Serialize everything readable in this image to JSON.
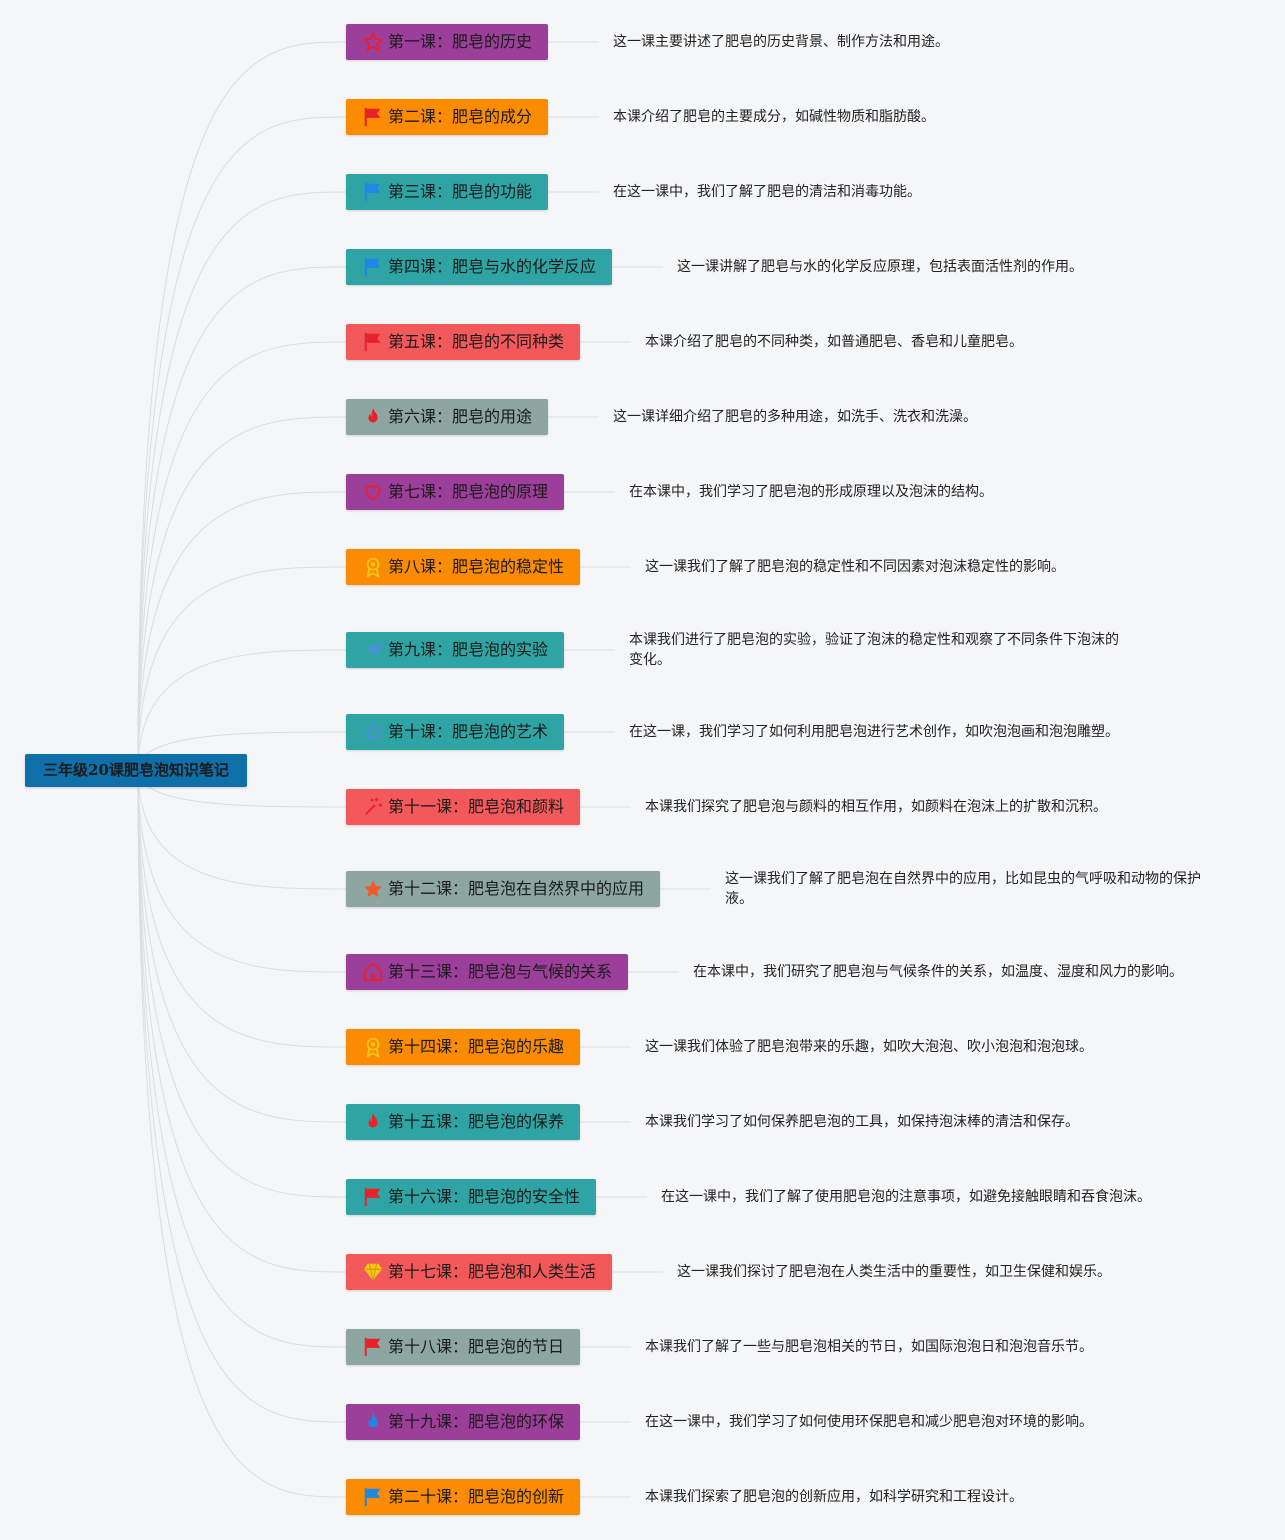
{
  "mindmap": {
    "root": {
      "label": "三年级20课肥皂泡知识笔记",
      "color": "#0f6fa8"
    },
    "lessons": [
      {
        "title": "第一课：肥皂的历史",
        "note": "这一课主要讲述了肥皂的历史背景、制作方法和用途。",
        "color": "#9c3f9a",
        "icon": "star-outline-icon",
        "icon_color": "#e8212b"
      },
      {
        "title": "第二课：肥皂的成分",
        "note": "本课介绍了肥皂的主要成分，如碱性物质和脂肪酸。",
        "color": "#fb8c00",
        "icon": "red-flag-icon",
        "icon_color": "#e8212b"
      },
      {
        "title": "第三课：肥皂的功能",
        "note": "在这一课中，我们了解了肥皂的清洁和消毒功能。",
        "color": "#2ea5a4",
        "icon": "blue-flag-icon",
        "icon_color": "#1e88e5"
      },
      {
        "title": "第四课：肥皂与水的化学反应",
        "note": "这一课讲解了肥皂与水的化学反应原理，包括表面活性剂的作用。",
        "color": "#2ea5a4",
        "icon": "blue-flag-icon",
        "icon_color": "#1e88e5"
      },
      {
        "title": "第五课：肥皂的不同种类",
        "note": "本课介绍了肥皂的不同种类，如普通肥皂、香皂和儿童肥皂。",
        "color": "#f3585a",
        "icon": "red-flag-icon",
        "icon_color": "#e8212b"
      },
      {
        "title": "第六课：肥皂的用途",
        "note": "这一课详细介绍了肥皂的多种用途，如洗手、洗衣和洗澡。",
        "color": "#8da6a0",
        "icon": "fire-icon",
        "icon_color": "#e8212b"
      },
      {
        "title": "第七课：肥皂泡的原理",
        "note": "在本课中，我们学习了肥皂泡的形成原理以及泡沫的结构。",
        "color": "#9c3f9a",
        "icon": "heart-outline-icon",
        "icon_color": "#e8212b"
      },
      {
        "title": "第八课：肥皂泡的稳定性",
        "note": "这一课我们了解了肥皂泡的稳定性和不同因素对泡沫稳定性的影响。",
        "color": "#fb8c00",
        "icon": "medal-icon",
        "icon_color": "#f5c518"
      },
      {
        "title": "第九课：肥皂泡的实验",
        "note": "本课我们进行了肥皂泡的实验，验证了泡沫的稳定性和观察了不同条件下泡沫的变化。",
        "color": "#2ea5a4",
        "icon": "paper-plane-icon",
        "icon_color": "#4a90d9"
      },
      {
        "title": "第十课：肥皂泡的艺术",
        "note": "在这一课，我们学习了如何利用肥皂泡进行艺术创作，如吹泡泡画和泡泡雕塑。",
        "color": "#2ea5a4",
        "icon": "star-outline-icon",
        "icon_color": "#4a90d9"
      },
      {
        "title": "第十一课：肥皂泡和颜料",
        "note": "本课我们探究了肥皂泡与颜料的相互作用，如颜料在泡沫上的扩散和沉积。",
        "color": "#f3585a",
        "icon": "sparkle-icon",
        "icon_color": "#e8212b"
      },
      {
        "title": "第十二课：肥皂泡在自然界中的应用",
        "note": "这一课我们了解了肥皂泡在自然界中的应用，比如昆虫的气呼吸和动物的保护液。",
        "color": "#8da6a0",
        "icon": "star-icon",
        "icon_color": "#ef5a28"
      },
      {
        "title": "第十三课：肥皂泡与气候的关系",
        "note": "在本课中，我们研究了肥皂泡与气候条件的关系，如温度、湿度和风力的影响。",
        "color": "#9c3f9a",
        "icon": "house-icon",
        "icon_color": "#e8212b"
      },
      {
        "title": "第十四课：肥皂泡的乐趣",
        "note": "这一课我们体验了肥皂泡带来的乐趣，如吹大泡泡、吹小泡泡和泡泡球。",
        "color": "#fb8c00",
        "icon": "medal-icon",
        "icon_color": "#f5c518"
      },
      {
        "title": "第十五课：肥皂泡的保养",
        "note": "本课我们学习了如何保养肥皂泡的工具，如保持泡沫棒的清洁和保存。",
        "color": "#2ea5a4",
        "icon": "fire-icon",
        "icon_color": "#e8212b"
      },
      {
        "title": "第十六课：肥皂泡的安全性",
        "note": "在这一课中，我们了解了使用肥皂泡的注意事项，如避免接触眼睛和吞食泡沫。",
        "color": "#2ea5a4",
        "icon": "red-flag-icon",
        "icon_color": "#e8212b"
      },
      {
        "title": "第十七课：肥皂泡和人类生活",
        "note": "这一课我们探讨了肥皂泡在人类生活中的重要性，如卫生保健和娱乐。",
        "color": "#f3585a",
        "icon": "diamond-icon",
        "icon_color": "#f5c518"
      },
      {
        "title": "第十八课：肥皂泡的节日",
        "note": "本课我们了解了一些与肥皂泡相关的节日，如国际泡泡日和泡泡音乐节。",
        "color": "#8da6a0",
        "icon": "red-flag-icon",
        "icon_color": "#e8212b"
      },
      {
        "title": "第十九课：肥皂泡的环保",
        "note": "在这一课中，我们学习了如何使用环保肥皂和减少肥皂泡对环境的影响。",
        "color": "#9c3f9a",
        "icon": "fire-icon",
        "icon_color": "#1e88e5"
      },
      {
        "title": "第二十课：肥皂泡的创新",
        "note": "本课我们探索了肥皂泡的创新应用，如科学研究和工程设计。",
        "color": "#fb8c00",
        "icon": "blue-flag-icon",
        "icon_color": "#1e88e5"
      }
    ]
  }
}
